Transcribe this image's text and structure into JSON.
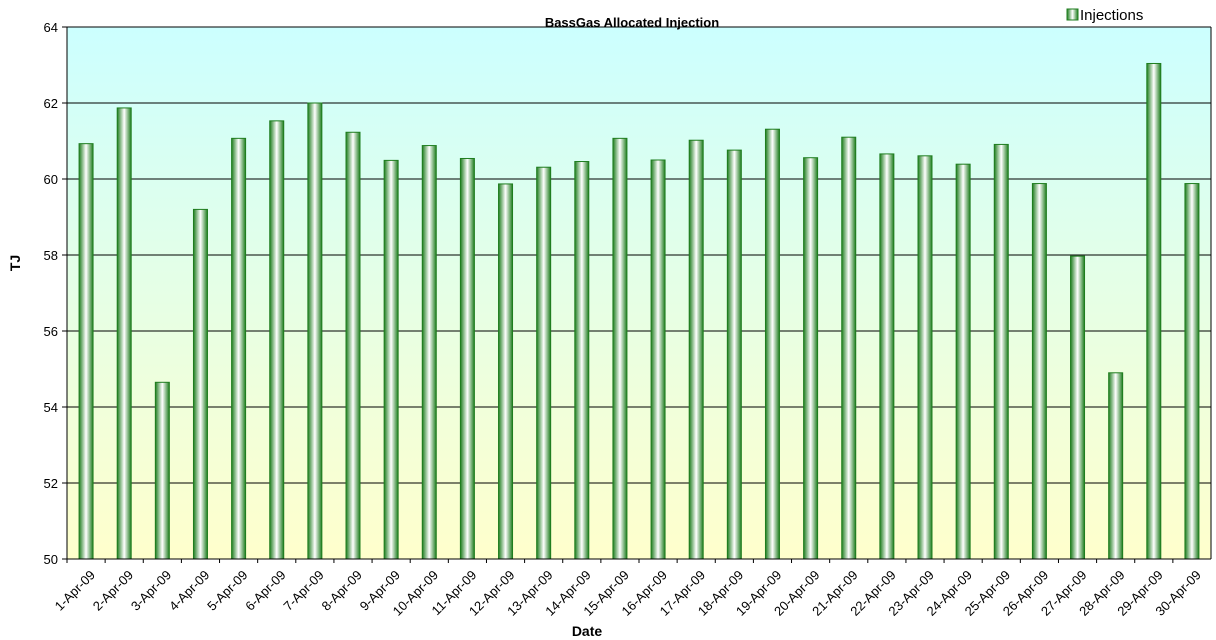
{
  "chart_data": {
    "type": "bar",
    "title": "BassGas Allocated Injection",
    "xlabel": "Date",
    "ylabel": "TJ",
    "ylim": [
      50,
      64
    ],
    "yticks": [
      50,
      52,
      54,
      56,
      58,
      60,
      62,
      64
    ],
    "grid": true,
    "legend_position": "top-right",
    "categories": [
      "1-Apr-09",
      "2-Apr-09",
      "3-Apr-09",
      "4-Apr-09",
      "5-Apr-09",
      "6-Apr-09",
      "7-Apr-09",
      "8-Apr-09",
      "9-Apr-09",
      "10-Apr-09",
      "11-Apr-09",
      "12-Apr-09",
      "13-Apr-09",
      "14-Apr-09",
      "15-Apr-09",
      "16-Apr-09",
      "17-Apr-09",
      "18-Apr-09",
      "19-Apr-09",
      "20-Apr-09",
      "21-Apr-09",
      "22-Apr-09",
      "23-Apr-09",
      "24-Apr-09",
      "25-Apr-09",
      "26-Apr-09",
      "27-Apr-09",
      "28-Apr-09",
      "29-Apr-09",
      "30-Apr-09"
    ],
    "series": [
      {
        "name": "Injections",
        "values": [
          60.93,
          61.87,
          54.65,
          59.2,
          61.07,
          61.53,
          62.0,
          61.23,
          60.49,
          60.88,
          60.54,
          59.87,
          60.31,
          60.46,
          61.07,
          60.5,
          61.02,
          60.76,
          61.31,
          60.56,
          61.1,
          60.66,
          60.61,
          60.39,
          60.91,
          59.88,
          57.97,
          54.9,
          63.04,
          59.88
        ]
      }
    ],
    "colors": {
      "bar_edge": "#1e7d1e",
      "bar_center": "#ffffff",
      "plot_top": "#ccffff",
      "plot_bottom": "#ffffcc",
      "gridline": "#000000"
    }
  }
}
